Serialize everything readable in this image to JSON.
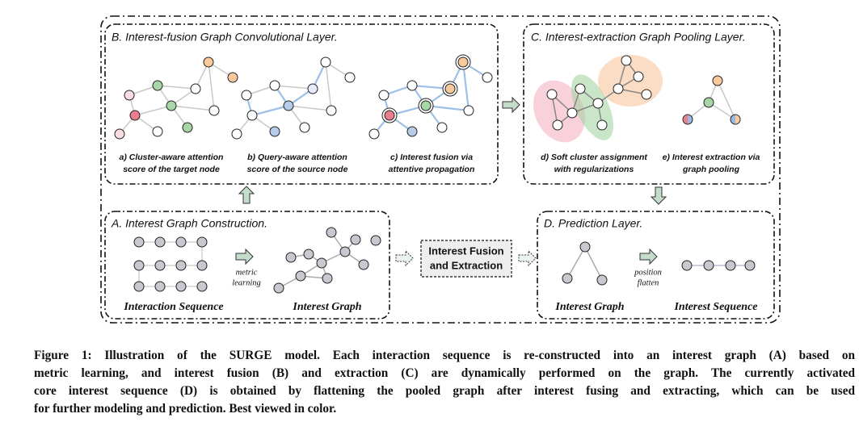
{
  "panel_b": {
    "title": "B. Interest-fusion Graph Convolutional Layer.",
    "captions": [
      [
        "a) Cluster-aware attention",
        "score of the target node"
      ],
      [
        "b) Query-aware attention",
        "score of the source node"
      ],
      [
        "c) Interest fusion via",
        "attentive propagation"
      ]
    ]
  },
  "panel_c": {
    "title": "C. Interest-extraction Graph Pooling Layer.",
    "captions": [
      [
        "d) Soft cluster assignment",
        "with regularizations"
      ],
      [
        "e) Interest extraction via",
        "graph pooling"
      ]
    ]
  },
  "panel_a": {
    "title": "A. Interest Graph Construction.",
    "arrow_label": [
      "metric",
      "learning"
    ],
    "labels": [
      "Interaction Sequence",
      "Interest Graph"
    ]
  },
  "center_box": [
    "Interest Fusion",
    "and Extraction"
  ],
  "panel_d": {
    "title": "D. Prediction Layer.",
    "arrow_label": [
      "position",
      "flatten"
    ],
    "labels": [
      "Interest Graph",
      "Interest Sequence"
    ]
  },
  "caption": [
    "Figure 1: Illustration of the SURGE model. Each interaction sequence is re-constructed into an interest graph (A) based on",
    "metric learning, and interest fusion (B) and extraction (C) are dynamically performed on the graph. The currently activated",
    "core interest sequence (D) is obtained by flattening the pooled graph after interest fusing and extracting, which can be used",
    "for further modeling and prediction. Best viewed in color."
  ]
}
